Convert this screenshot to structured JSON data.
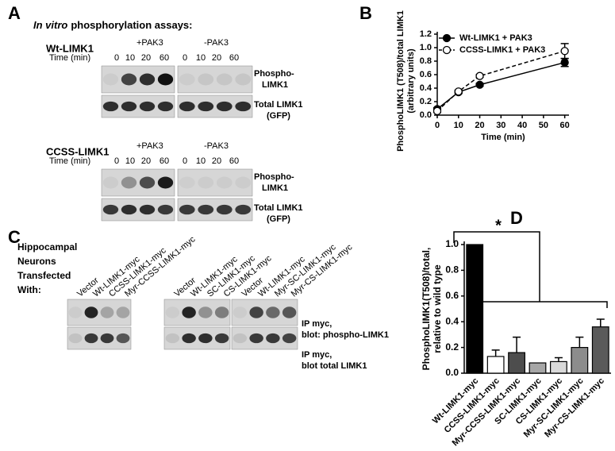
{
  "panels": {
    "A": {
      "letter": "A",
      "title_italic": "In vitro",
      "title_rest": "phosphorylation assays:",
      "blocks": [
        {
          "construct": "Wt-LIMK1",
          "conditions": [
            "+PAK3",
            "-PAK3"
          ],
          "time_label": "Time (min)",
          "lanes": [
            "0",
            "10",
            "20",
            "60",
            "0",
            "10",
            "20",
            "60"
          ],
          "blot_labels": [
            [
              "Phospho-",
              "LIMK1"
            ],
            [
              "Total LIMK1",
              "(GFP)"
            ]
          ]
        },
        {
          "construct": "CCSS-LIMK1",
          "conditions": [
            "+PAK3",
            "-PAK3"
          ],
          "time_label": "Time (min)",
          "lanes": [
            "0",
            "10",
            "20",
            "60",
            "0",
            "10",
            "20",
            "60"
          ],
          "blot_labels": [
            [
              "Phospho-",
              "LIMK1"
            ],
            [
              "Total LIMK1",
              "(GFP)"
            ]
          ]
        }
      ]
    },
    "C": {
      "letter": "C",
      "caption": [
        "Hippocampal",
        "Neurons",
        "Transfected",
        "With:"
      ],
      "lane_groups": [
        [
          "Vector",
          "Wt-LIMK1-myc",
          "CCSS-LIMK1-myc",
          "Myr-CCSS-LIMK1-myc"
        ],
        [
          "Vector",
          "Wt-LIMK1-myc",
          "SC-LIMK1-myc",
          "CS-LIMK1-myc"
        ],
        [
          "Vector",
          "Wt-LIMK1-myc",
          "Myr-SC-LIMK1-myc",
          "Myr-CS-LIMK1-myc"
        ]
      ],
      "blot_labels": [
        [
          "IP myc,",
          "blot: phospho-LIMK1"
        ],
        [
          "IP myc,",
          "blot total LIMK1"
        ]
      ]
    }
  },
  "chart_data": [
    {
      "type": "line",
      "label": "B",
      "x_label": "Time (min)",
      "y_label": [
        "PhosphoLIMK1 (T508)/total LIMK1",
        "(arbitrary units)"
      ],
      "x": [
        0,
        10,
        20,
        60
      ],
      "series": [
        {
          "name": "Wt-LIMK1 + PAK3",
          "color": "#000000",
          "marker": "filled",
          "linestyle": "solid",
          "values": [
            0.09,
            0.34,
            0.45,
            0.78
          ],
          "errors": [
            0.02,
            0.02,
            0.02,
            0.06
          ]
        },
        {
          "name": "CCSS-LIMK1 + PAK3",
          "color": "#000000",
          "marker": "open",
          "linestyle": "dashed",
          "values": [
            0.06,
            0.35,
            0.58,
            0.95
          ],
          "errors": [
            0.02,
            0.02,
            0.02,
            0.11
          ]
        }
      ],
      "xlim": [
        0,
        62
      ],
      "xticks": [
        0,
        10,
        20,
        30,
        40,
        50,
        60
      ],
      "ylim": [
        0,
        1.2
      ],
      "yticks": [
        {
          "value": 0,
          "label": "0.0"
        },
        0.2,
        0.4,
        0.6,
        0.8,
        {
          "value": 1,
          "label": "1.0"
        },
        1.2
      ],
      "legend": "top-left"
    },
    {
      "type": "bar",
      "label": "D",
      "y_label": [
        "PhosphoLIMK1(T508)/total,",
        "relative to wild type"
      ],
      "annotation": "*",
      "categories": [
        "Wt-LIMK1-myc",
        "CCSS-LIMK1-myc",
        "Myr-CCSS-LIMK1-myc",
        "SC-LIMK1-myc",
        "CS-LIMK1-myc",
        "Myr-SC-LIMK1-myc",
        "Myr-CS-LIMK1-myc"
      ],
      "values": [
        1.0,
        0.13,
        0.16,
        0.08,
        0.09,
        0.2,
        0.36
      ],
      "errors": [
        null,
        0.05,
        0.12,
        null,
        0.03,
        0.08,
        0.06
      ],
      "colors": [
        "#000000",
        "#ffffff",
        "#4d4d4d",
        "#a6a6a6",
        "#d9d9d9",
        "#8c8c8c",
        "#5a5a5a"
      ],
      "ylim": [
        0,
        1.0
      ],
      "yticks": [
        {
          "value": 0,
          "label": "0.0"
        },
        0.2,
        0.4,
        0.6,
        0.8,
        {
          "value": 1,
          "label": "1.0"
        }
      ]
    }
  ]
}
